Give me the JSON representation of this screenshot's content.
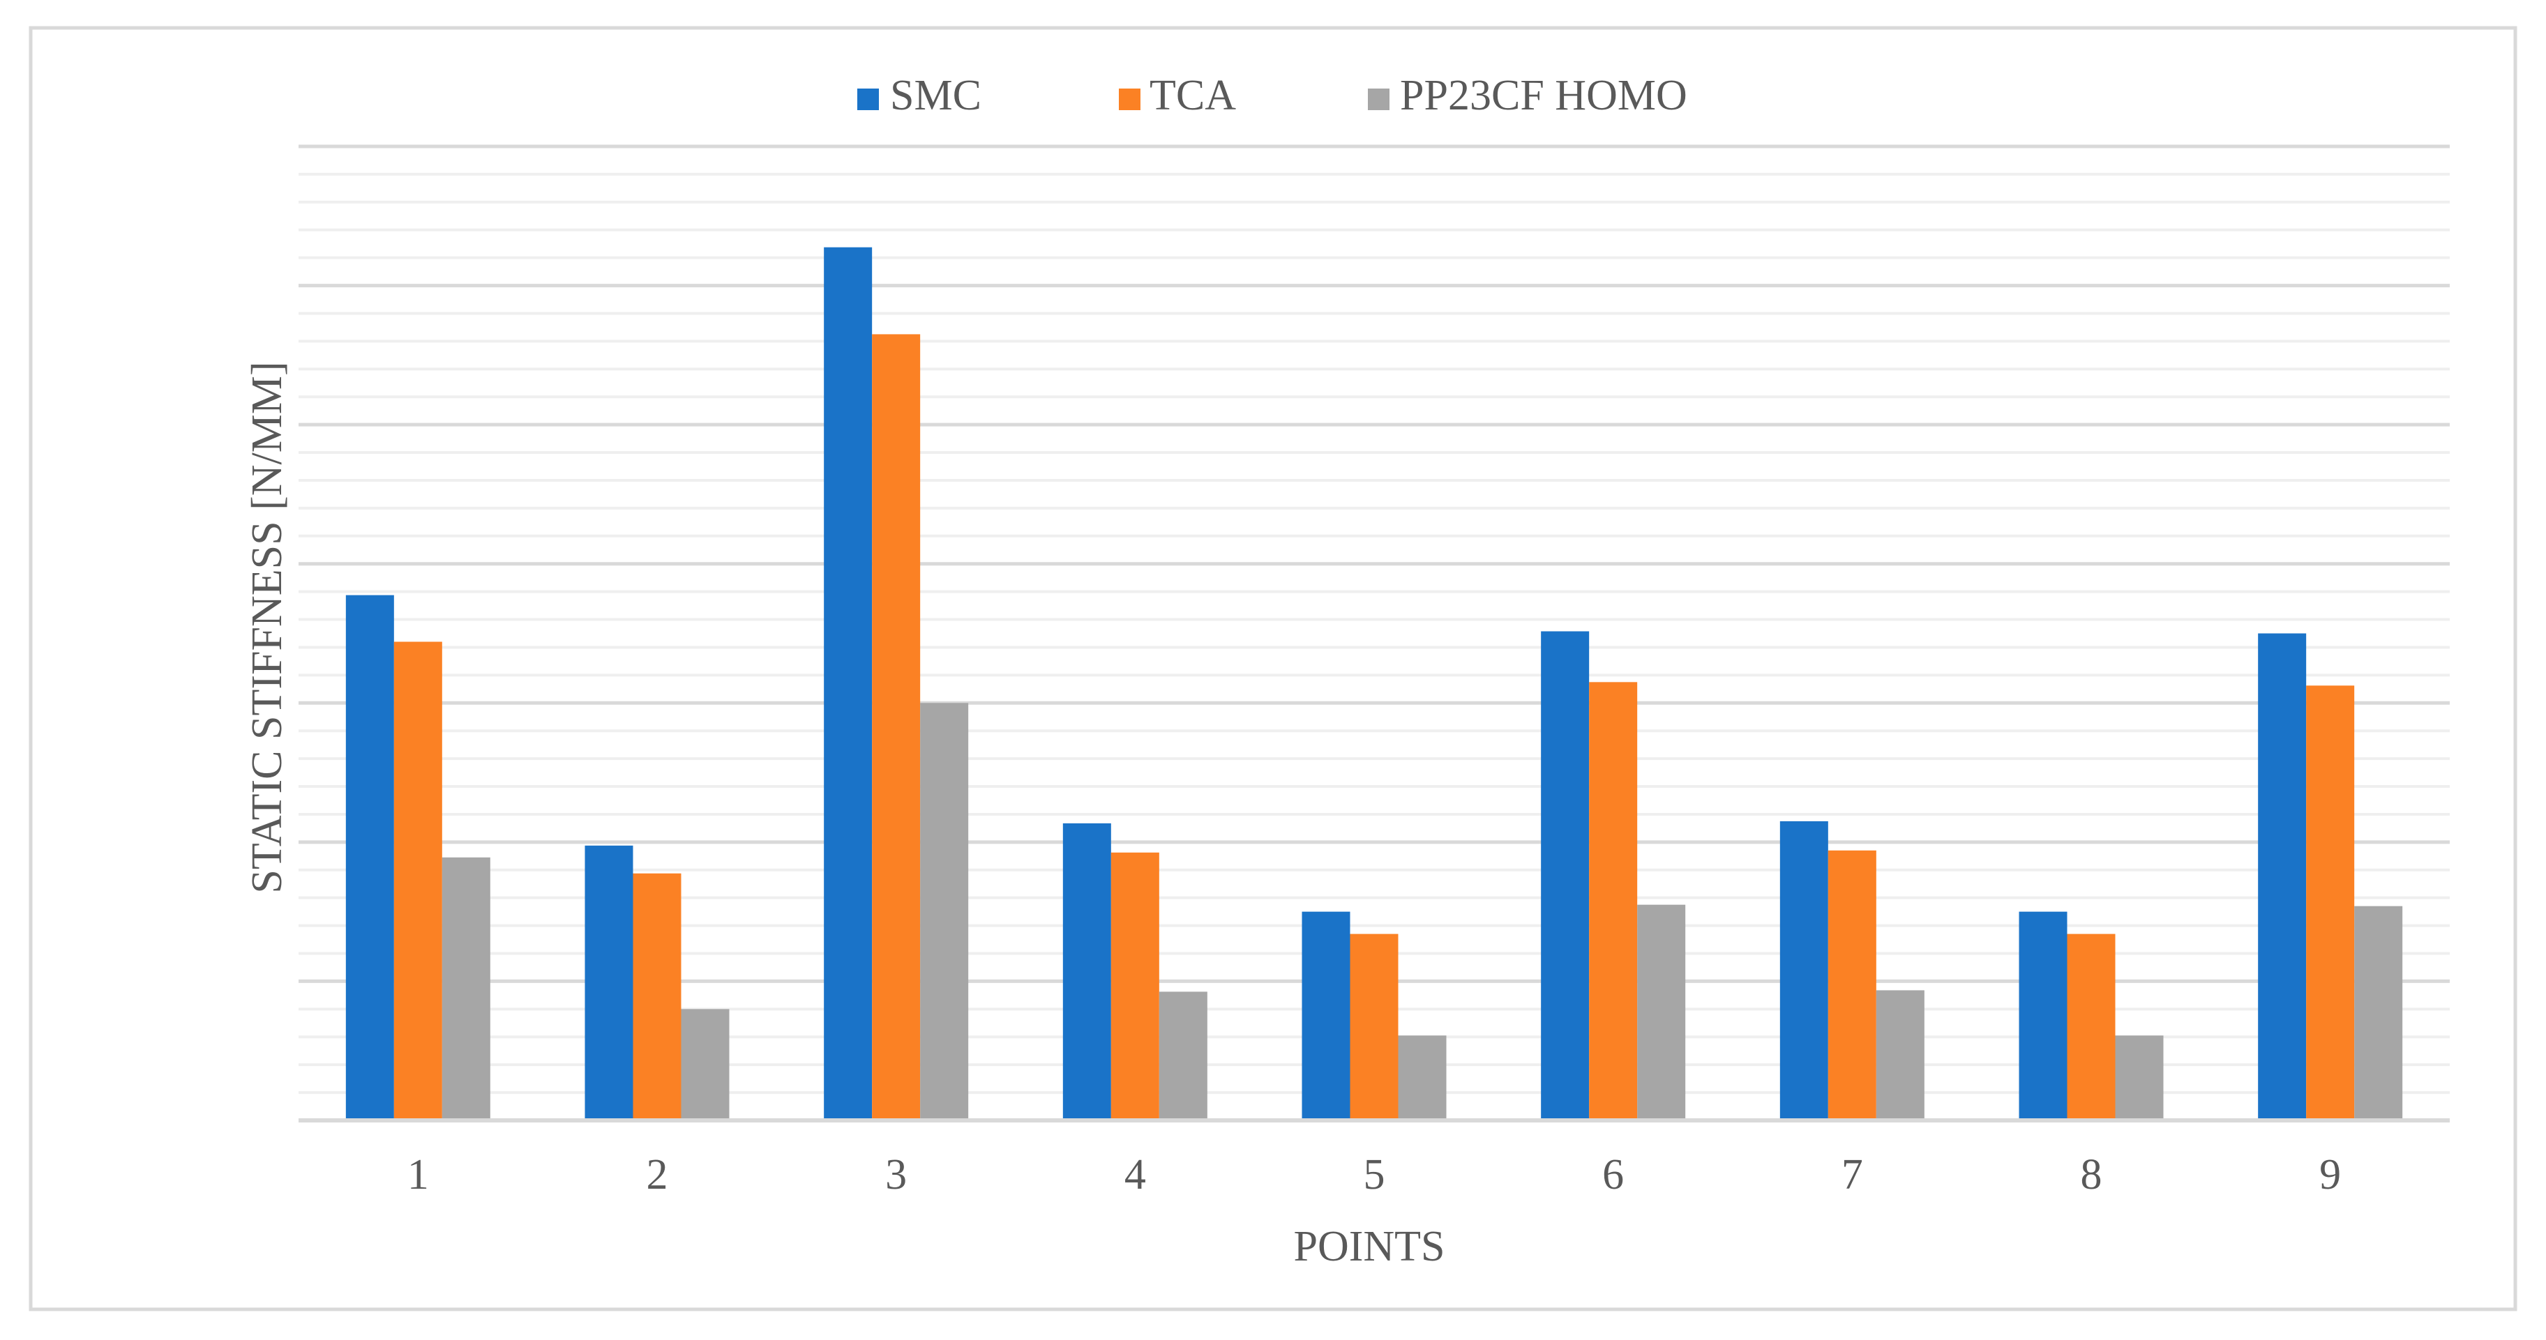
{
  "chart_data": {
    "type": "bar",
    "title": "",
    "xlabel": "POINTS",
    "ylabel": "STATIC STIFFNESS [N/MM]",
    "categories": [
      "1",
      "2",
      "3",
      "4",
      "5",
      "6",
      "7",
      "8",
      "9"
    ],
    "series": [
      {
        "name": "SMC",
        "color": "#1a73c8",
        "values": [
          7.55,
          3.95,
          12.55,
          4.27,
          3.0,
          7.03,
          4.3,
          3.0,
          7.0
        ]
      },
      {
        "name": "TCA",
        "color": "#fb8124",
        "values": [
          6.88,
          3.55,
          11.3,
          3.85,
          2.68,
          6.3,
          3.88,
          2.68,
          6.25
        ]
      },
      {
        "name": "PP23CF HOMO",
        "color": "#a6a6a6",
        "values": [
          3.78,
          1.6,
          6.0,
          1.85,
          1.22,
          3.1,
          1.87,
          1.22,
          3.08
        ]
      }
    ],
    "ylim": [
      0,
      14
    ],
    "grid": true,
    "legend_position": "top-center",
    "y_tick_labels_shown": false
  }
}
